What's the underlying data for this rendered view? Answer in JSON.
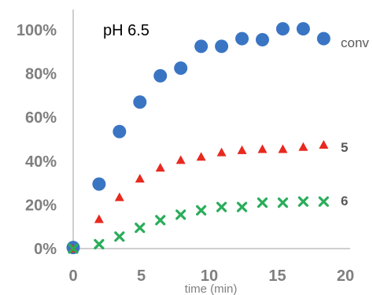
{
  "chart_data": {
    "type": "scatter",
    "annotation": "pH 6.5",
    "xlabel": "time (min)",
    "ylabel": "",
    "xlim": [
      0,
      20
    ],
    "ylim": [
      0,
      1.0
    ],
    "x_ticks": [
      "0",
      "5",
      "10",
      "15",
      "20"
    ],
    "y_ticks": [
      "0%",
      "20%",
      "40%",
      "60%",
      "80%",
      "100%"
    ],
    "grid": false,
    "series": [
      {
        "name": "conv",
        "marker": "circle",
        "color": "#3a75c4",
        "x": [
          0,
          1.9,
          3.4,
          4.9,
          6.4,
          7.9,
          9.4,
          10.9,
          12.4,
          13.9,
          15.4,
          16.9,
          18.4
        ],
        "y": [
          0.005,
          0.295,
          0.535,
          0.67,
          0.79,
          0.825,
          0.925,
          0.925,
          0.96,
          0.955,
          1.005,
          1.005,
          0.96
        ]
      },
      {
        "name": "5",
        "marker": "triangle",
        "color": "#e8291f",
        "x": [
          0,
          1.9,
          3.4,
          4.9,
          6.4,
          7.9,
          9.4,
          10.9,
          12.4,
          13.9,
          15.4,
          16.9,
          18.4
        ],
        "y": [
          0.0,
          0.135,
          0.235,
          0.32,
          0.37,
          0.405,
          0.42,
          0.44,
          0.45,
          0.455,
          0.455,
          0.465,
          0.475
        ]
      },
      {
        "name": "6",
        "marker": "x",
        "color": "#2aad5a",
        "x": [
          0,
          1.9,
          3.4,
          4.9,
          6.4,
          7.9,
          9.4,
          10.9,
          12.4,
          13.9,
          15.4,
          16.9,
          18.4
        ],
        "y": [
          0.0,
          0.02,
          0.055,
          0.095,
          0.13,
          0.155,
          0.175,
          0.19,
          0.19,
          0.21,
          0.21,
          0.215,
          0.215
        ]
      }
    ]
  }
}
